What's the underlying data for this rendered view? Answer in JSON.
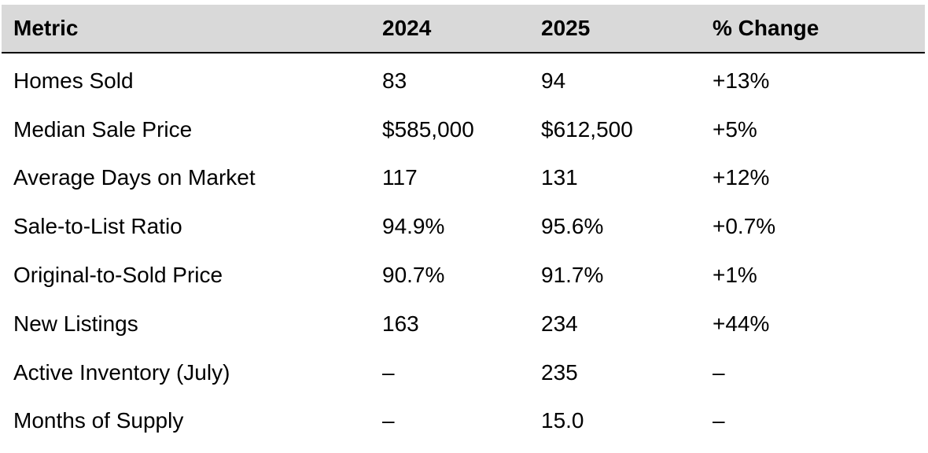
{
  "table": {
    "headers": [
      "Metric",
      "2024",
      "2025",
      "% Change"
    ],
    "rows": [
      [
        "Homes Sold",
        "83",
        "94",
        "+13%"
      ],
      [
        "Median Sale Price",
        "$585,000",
        "$612,500",
        "+5%"
      ],
      [
        "Average Days on Market",
        "117",
        "131",
        "+12%"
      ],
      [
        "Sale-to-List Ratio",
        "94.9%",
        "95.6%",
        "+0.7%"
      ],
      [
        "Original-to-Sold Price",
        "90.7%",
        "91.7%",
        "+1%"
      ],
      [
        "New Listings",
        "163",
        "234",
        "+44%"
      ],
      [
        "Active Inventory (July)",
        "–",
        "235",
        "–"
      ],
      [
        "Months of Supply",
        "–",
        "15.0",
        "–"
      ]
    ]
  },
  "colors": {
    "header_bg": "#d9d9d9",
    "header_rule": "#000000",
    "text": "#000000"
  }
}
